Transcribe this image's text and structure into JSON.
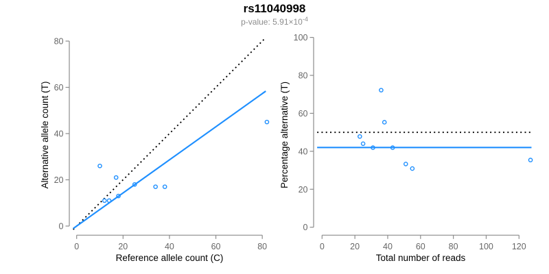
{
  "header": {
    "title": "rs11040998",
    "subtitle_prefix": "p-value: 5.91×10",
    "subtitle_exponent": "-4"
  },
  "colors": {
    "point_blue": "#1E8FFF",
    "line_blue": "#1E8FFF",
    "identity_black": "#000000",
    "axis_gray": "#8c8c8c",
    "tick_label_gray": "#666666"
  },
  "chart_data": [
    {
      "id": "left",
      "type": "scatter",
      "xlabel": "Reference allele count (C)",
      "ylabel": "Alternative allele count (T)",
      "xlim": [
        0,
        80
      ],
      "ylim": [
        0,
        80
      ],
      "x_ticks": [
        0,
        20,
        40,
        60,
        80
      ],
      "y_ticks": [
        0,
        20,
        40,
        60,
        80
      ],
      "grid": false,
      "point_style": "open-circle",
      "points": [
        [
          10,
          26
        ],
        [
          12,
          11
        ],
        [
          14,
          11
        ],
        [
          17,
          21
        ],
        [
          18,
          13
        ],
        [
          25,
          18
        ],
        [
          34,
          17
        ],
        [
          38,
          17
        ],
        [
          82,
          45
        ]
      ],
      "lines": [
        {
          "name": "identity-line",
          "style": "dotted",
          "color": "#000000",
          "slope": 1,
          "intercept": 0
        },
        {
          "name": "fit-line",
          "style": "solid",
          "color": "#1E8FFF",
          "slope": 0.716,
          "intercept": 0
        }
      ]
    },
    {
      "id": "right",
      "type": "scatter",
      "xlabel": "Total number of reads",
      "ylabel": "Percentage alternative (T)",
      "xlim": [
        0,
        127
      ],
      "ylim": [
        0,
        100
      ],
      "x_ticks": [
        0,
        20,
        40,
        60,
        80,
        100,
        120
      ],
      "y_ticks": [
        0,
        20,
        40,
        60,
        80,
        100
      ],
      "grid": false,
      "point_style": "open-circle",
      "points": [
        [
          23,
          47.8
        ],
        [
          25,
          44.0
        ],
        [
          31,
          41.9
        ],
        [
          36,
          72.2
        ],
        [
          38,
          55.3
        ],
        [
          43,
          41.9
        ],
        [
          51,
          33.3
        ],
        [
          55,
          30.9
        ],
        [
          127,
          35.4
        ]
      ],
      "lines": [
        {
          "name": "expected-50pct-line",
          "style": "dotted",
          "color": "#000000",
          "y": 50
        },
        {
          "name": "observed-mean-line",
          "style": "solid",
          "color": "#1E8FFF",
          "y": 42
        }
      ]
    }
  ]
}
